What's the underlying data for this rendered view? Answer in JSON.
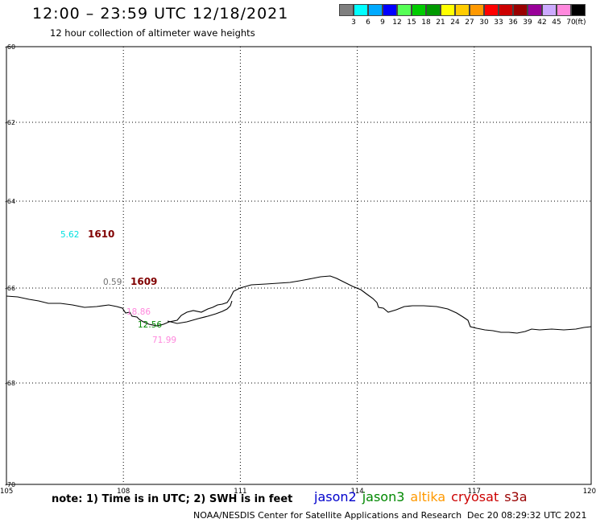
{
  "header": {
    "title": "12:00 – 23:59 UTC 12/18/2021",
    "subtitle": "12 hour collection of altimeter wave heights"
  },
  "legend": {
    "unit": "(ft)",
    "bins": [
      {
        "label": "3",
        "color": "#7f7f7f"
      },
      {
        "label": "6",
        "color": "#00ffff"
      },
      {
        "label": "9",
        "color": "#00aaff"
      },
      {
        "label": "12",
        "color": "#0000ff"
      },
      {
        "label": "15",
        "color": "#55ff55"
      },
      {
        "label": "18",
        "color": "#00cc00"
      },
      {
        "label": "21",
        "color": "#009900"
      },
      {
        "label": "24",
        "color": "#ffff00"
      },
      {
        "label": "27",
        "color": "#ffcc00"
      },
      {
        "label": "30",
        "color": "#ff9900"
      },
      {
        "label": "33",
        "color": "#ff0000"
      },
      {
        "label": "36",
        "color": "#cc0000"
      },
      {
        "label": "39",
        "color": "#990000"
      },
      {
        "label": "42",
        "color": "#990099"
      },
      {
        "label": "45",
        "color": "#ccaaff"
      },
      {
        "label": "70",
        "color": "#ff88dd"
      },
      {
        "label": "",
        "color": "#000000"
      }
    ]
  },
  "map": {
    "lat_labels": [
      {
        "text": "-60",
        "value": -60
      },
      {
        "text": "-62",
        "value": -62
      },
      {
        "text": "-64",
        "value": -64
      },
      {
        "text": "-66",
        "value": -66
      },
      {
        "text": "-68",
        "value": -68
      },
      {
        "text": "-70",
        "value": -70
      }
    ],
    "lon_labels": [
      {
        "text": "105",
        "value": 105
      },
      {
        "text": "108",
        "value": 108
      },
      {
        "text": "111",
        "value": 111
      },
      {
        "text": "114",
        "value": 114
      },
      {
        "text": "117",
        "value": 117
      },
      {
        "text": "120",
        "value": 120
      }
    ],
    "observations": [
      {
        "text": "5.62",
        "color": "#00e0e0",
        "kind": "value"
      },
      {
        "text": "1610",
        "color": "#800000",
        "kind": "id"
      },
      {
        "text": "0.59",
        "color": "#707070",
        "kind": "value"
      },
      {
        "text": "1609",
        "color": "#800000",
        "kind": "id"
      },
      {
        "text": "18.86",
        "color": "#ff88dd",
        "kind": "value"
      },
      {
        "text": "12.56",
        "color": "#008800",
        "kind": "value"
      },
      {
        "text": "71.99",
        "color": "#ff88dd",
        "kind": "value"
      }
    ]
  },
  "footer": {
    "note": "note:  1)  Time is in UTC;  2)  SWH is in feet",
    "satellites": [
      {
        "name": "jason2",
        "color": "#0000cc"
      },
      {
        "name": "jason3",
        "color": "#008800"
      },
      {
        "name": "altika",
        "color": "#ff9900"
      },
      {
        "name": "cryosat",
        "color": "#cc0000"
      },
      {
        "name": "s3a",
        "color": "#990000"
      }
    ],
    "credit": "NOAA/NESDIS Center for Satellite Applications and Research",
    "timestamp": "Dec 20 08:29:32 UTC 2021"
  }
}
